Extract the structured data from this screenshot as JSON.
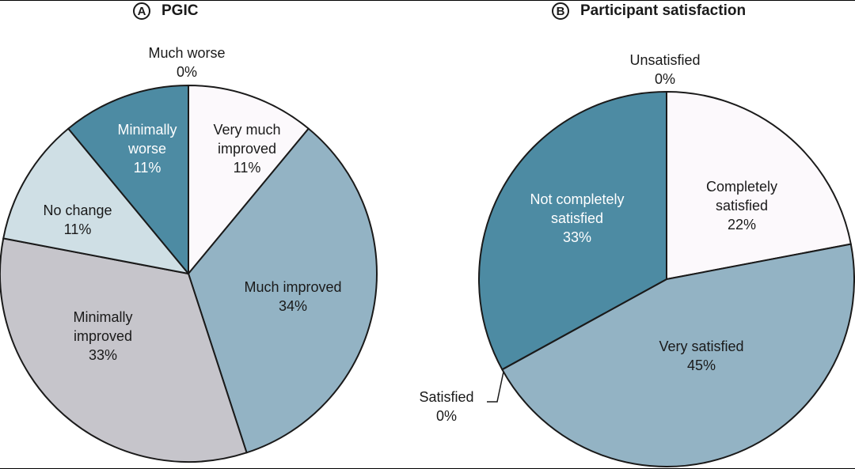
{
  "chart_data": [
    {
      "type": "pie",
      "panel_letter": "A",
      "title": "PGIC",
      "slices": [
        {
          "label": "Very much improved",
          "lines": [
            "Very much",
            "improved",
            "11%"
          ],
          "value": 11,
          "color": "#fcf9fc",
          "text_color": "#1a1a1a"
        },
        {
          "label": "Much improved",
          "lines": [
            "Much improved",
            "34%"
          ],
          "value": 34,
          "color": "#93b3c4",
          "text_color": "#1a1a1a"
        },
        {
          "label": "Minimally improved",
          "lines": [
            "Minimally",
            "improved",
            "33%"
          ],
          "value": 33,
          "color": "#c6c5cb",
          "text_color": "#1a1a1a"
        },
        {
          "label": "No change",
          "lines": [
            "No change",
            "11%"
          ],
          "value": 11,
          "color": "#cfdfe5",
          "text_color": "#1a1a1a"
        },
        {
          "label": "Minimally worse",
          "lines": [
            "Minimally",
            "worse",
            "11%"
          ],
          "value": 11,
          "color": "#4d8ba3",
          "text_color": "#ffffff"
        },
        {
          "label": "Much worse",
          "lines": [
            "Much worse",
            "0%"
          ],
          "value": 0,
          "color": "#ffffff",
          "text_color": "#1a1a1a"
        }
      ]
    },
    {
      "type": "pie",
      "panel_letter": "B",
      "title": "Participant satisfaction",
      "slices": [
        {
          "label": "Completely satisfied",
          "lines": [
            "Completely",
            "satisfied",
            "22%"
          ],
          "value": 22,
          "color": "#fcf9fc",
          "text_color": "#1a1a1a"
        },
        {
          "label": "Very satisfied",
          "lines": [
            "Very satisfied",
            "45%"
          ],
          "value": 45,
          "color": "#93b3c4",
          "text_color": "#1a1a1a"
        },
        {
          "label": "Satisfied",
          "lines": [
            "Satisfied",
            "0%"
          ],
          "value": 0,
          "color": "#ffffff",
          "text_color": "#1a1a1a"
        },
        {
          "label": "Not completely satisfied",
          "lines": [
            "Not completely",
            "satisfied",
            "33%"
          ],
          "value": 33,
          "color": "#4d8ba3",
          "text_color": "#ffffff"
        },
        {
          "label": "Unsatisfied",
          "lines": [
            "Unsatisfied",
            "0%"
          ],
          "value": 0,
          "color": "#ffffff",
          "text_color": "#1a1a1a"
        }
      ]
    }
  ]
}
